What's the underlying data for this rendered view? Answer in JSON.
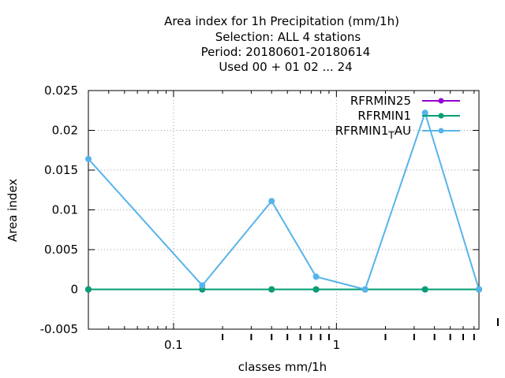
{
  "chart_data": {
    "type": "line",
    "title_lines": [
      "Area index  for 1h Precipitation (mm/1h)",
      "Selection: ALL      4 stations",
      "Period: 20180601-20180614",
      "Used  00 + 01 02 ... 24"
    ],
    "xlabel": "classes mm/1h",
    "ylabel": "Area index",
    "xscale": "log",
    "xlim": [
      0.03,
      7.5
    ],
    "ylim": [
      -0.005,
      0.025
    ],
    "yticks": [
      -0.005,
      0,
      0.005,
      0.01,
      0.015,
      0.02,
      0.025
    ],
    "ytick_labels": [
      "-0.005",
      "0",
      "0.005",
      "0.01",
      "0.015",
      "0.02",
      "0.025"
    ],
    "xticks_major": [
      0.1,
      1
    ],
    "xtick_labels": [
      "0.1",
      "1"
    ],
    "grid": true,
    "legend_position": "top-right",
    "series": [
      {
        "name": "RFRMIN25",
        "color": "#9400d3",
        "x": [
          0.03,
          0.15,
          0.4,
          0.75,
          1.5,
          3.5,
          7.5
        ],
        "y": [
          0,
          0,
          0,
          0,
          0,
          0,
          0
        ]
      },
      {
        "name": "RFRMIN1",
        "color": "#009e73",
        "x": [
          0.03,
          0.15,
          0.4,
          0.75,
          1.5,
          3.5,
          7.5
        ],
        "y": [
          0,
          0,
          0,
          0,
          0,
          0,
          0
        ]
      },
      {
        "name": "RFRMIN1",
        "name_sub": "T",
        "name_suffix": "AU",
        "color": "#56b4e9",
        "x": [
          0.03,
          0.15,
          0.4,
          0.75,
          1.5,
          3.5,
          7.5
        ],
        "y": [
          0.0164,
          0.0005,
          0.0111,
          0.0016,
          0.0,
          0.0222,
          0.0
        ]
      }
    ]
  }
}
